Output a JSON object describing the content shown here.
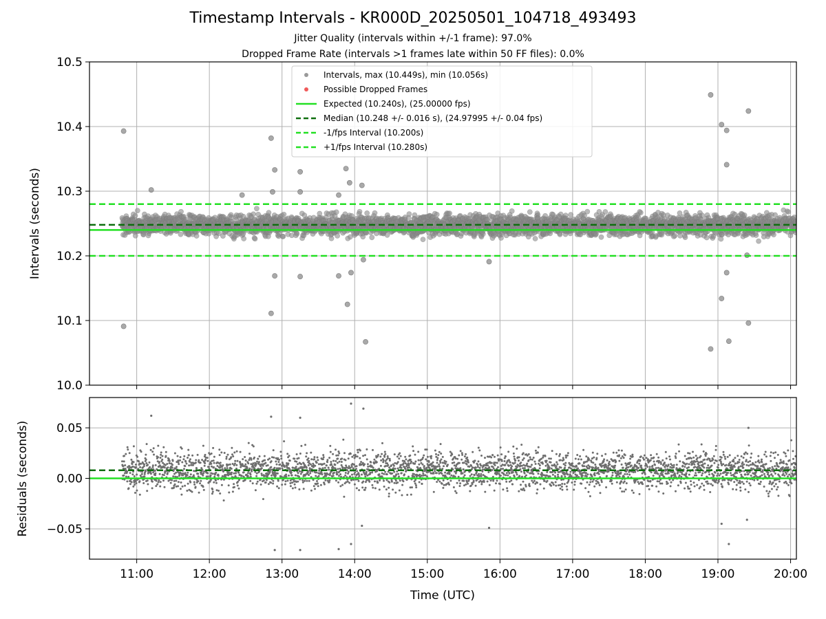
{
  "figure": {
    "title": "Timestamp Intervals - KR000D_20250501_104718_493493",
    "subtitle_1": "Jitter Quality (intervals within +/-1 frame): 97.0%",
    "subtitle_2": "Dropped Frame Rate (intervals >1 frames late within 50 FF files): 0.0%"
  },
  "chart_data": [
    {
      "type": "scatter",
      "panel": "intervals",
      "ylabel": "Intervals (seconds)",
      "xlabel": "",
      "ylim": [
        10.0,
        10.5
      ],
      "y_ticks": [
        "10.0",
        "10.1",
        "10.2",
        "10.3",
        "10.4",
        "10.5"
      ],
      "y_tick_values": [
        10.0,
        10.1,
        10.2,
        10.3,
        10.4,
        10.5
      ],
      "xlim": [
        10.35,
        20.08
      ],
      "x_tick_values": [
        11,
        12,
        13,
        14,
        15,
        16,
        17,
        18,
        19,
        20
      ],
      "grid": true,
      "legend_placement": "upper-center",
      "legend": [
        {
          "label": "Intervals, max (10.449s), min (10.056s)",
          "marker": "point",
          "color": "#999999"
        },
        {
          "label": "Possible Dropped Frames",
          "marker": "point",
          "color": "#f05a5a"
        },
        {
          "label": "Expected (10.240s), (25.00000 fps)",
          "marker": "solid-line",
          "color": "#22e022"
        },
        {
          "label": "Median (10.248 +/- 0.016 s), (24.97995 +/- 0.04 fps)",
          "marker": "dashed-line",
          "color": "#0d6e0d"
        },
        {
          "label": "-1/fps Interval (10.200s)",
          "marker": "dashed-line",
          "color": "#22e022"
        },
        {
          "label": "+1/fps Interval (10.280s)",
          "marker": "dashed-line",
          "color": "#22e022"
        }
      ],
      "reference_lines": {
        "expected": 10.24,
        "median": 10.248,
        "minus_one_frame": 10.2,
        "plus_one_frame": 10.28
      },
      "series": [
        {
          "name": "Intervals, max (10.449s), min (10.056s)",
          "x_range_hours": [
            10.8,
            20.08
          ],
          "bulk_range": [
            10.21,
            10.28
          ],
          "approx_count": 3300,
          "outliers": [
            {
              "x": 10.82,
              "y": 10.393
            },
            {
              "x": 10.82,
              "y": 10.091
            },
            {
              "x": 11.2,
              "y": 10.302
            },
            {
              "x": 12.45,
              "y": 10.294
            },
            {
              "x": 12.85,
              "y": 10.382
            },
            {
              "x": 12.9,
              "y": 10.333
            },
            {
              "x": 12.87,
              "y": 10.299
            },
            {
              "x": 12.9,
              "y": 10.169
            },
            {
              "x": 12.85,
              "y": 10.111
            },
            {
              "x": 13.25,
              "y": 10.33
            },
            {
              "x": 13.25,
              "y": 10.299
            },
            {
              "x": 13.25,
              "y": 10.168
            },
            {
              "x": 13.78,
              "y": 10.294
            },
            {
              "x": 13.78,
              "y": 10.169
            },
            {
              "x": 13.88,
              "y": 10.335
            },
            {
              "x": 13.93,
              "y": 10.313
            },
            {
              "x": 13.95,
              "y": 10.174
            },
            {
              "x": 13.9,
              "y": 10.125
            },
            {
              "x": 14.1,
              "y": 10.309
            },
            {
              "x": 14.15,
              "y": 10.067
            },
            {
              "x": 14.12,
              "y": 10.194
            },
            {
              "x": 15.85,
              "y": 10.191
            },
            {
              "x": 18.9,
              "y": 10.449
            },
            {
              "x": 19.05,
              "y": 10.403
            },
            {
              "x": 19.12,
              "y": 10.394
            },
            {
              "x": 19.12,
              "y": 10.341
            },
            {
              "x": 19.12,
              "y": 10.174
            },
            {
              "x": 19.05,
              "y": 10.134
            },
            {
              "x": 19.15,
              "y": 10.068
            },
            {
              "x": 18.9,
              "y": 10.056
            },
            {
              "x": 19.42,
              "y": 10.424
            },
            {
              "x": 19.42,
              "y": 10.096
            },
            {
              "x": 19.4,
              "y": 10.201
            }
          ]
        },
        {
          "name": "Possible Dropped Frames",
          "points": []
        }
      ]
    },
    {
      "type": "scatter",
      "panel": "residuals",
      "ylabel": "Residuals (seconds)",
      "xlabel": "Time (UTC)",
      "ylim": [
        -0.08,
        0.08
      ],
      "y_ticks": [
        "−0.05",
        "0.00",
        "0.05"
      ],
      "y_tick_values": [
        -0.05,
        0.0,
        0.05
      ],
      "xlim": [
        10.35,
        20.08
      ],
      "x_ticks": [
        "11:00",
        "12:00",
        "13:00",
        "14:00",
        "15:00",
        "16:00",
        "17:00",
        "18:00",
        "19:00",
        "20:00"
      ],
      "x_tick_values": [
        11,
        12,
        13,
        14,
        15,
        16,
        17,
        18,
        19,
        20
      ],
      "grid": true,
      "reference_lines": {
        "zero": 0.0,
        "median": 0.008
      },
      "series": [
        {
          "name": "",
          "x_range_hours": [
            10.8,
            20.08
          ],
          "bulk_range": [
            -0.03,
            0.04
          ],
          "approx_count": 3300,
          "outliers": [
            {
              "x": 11.2,
              "y": 0.062
            },
            {
              "x": 12.85,
              "y": 0.061
            },
            {
              "x": 12.9,
              "y": -0.071
            },
            {
              "x": 13.25,
              "y": 0.06
            },
            {
              "x": 13.25,
              "y": -0.071
            },
            {
              "x": 13.78,
              "y": -0.07
            },
            {
              "x": 13.95,
              "y": 0.074
            },
            {
              "x": 13.95,
              "y": -0.065
            },
            {
              "x": 14.12,
              "y": 0.069
            },
            {
              "x": 14.1,
              "y": -0.047
            },
            {
              "x": 15.85,
              "y": -0.049
            },
            {
              "x": 19.05,
              "y": -0.045
            },
            {
              "x": 19.15,
              "y": -0.065
            },
            {
              "x": 19.4,
              "y": -0.041
            },
            {
              "x": 19.42,
              "y": 0.05
            }
          ]
        }
      ]
    }
  ]
}
